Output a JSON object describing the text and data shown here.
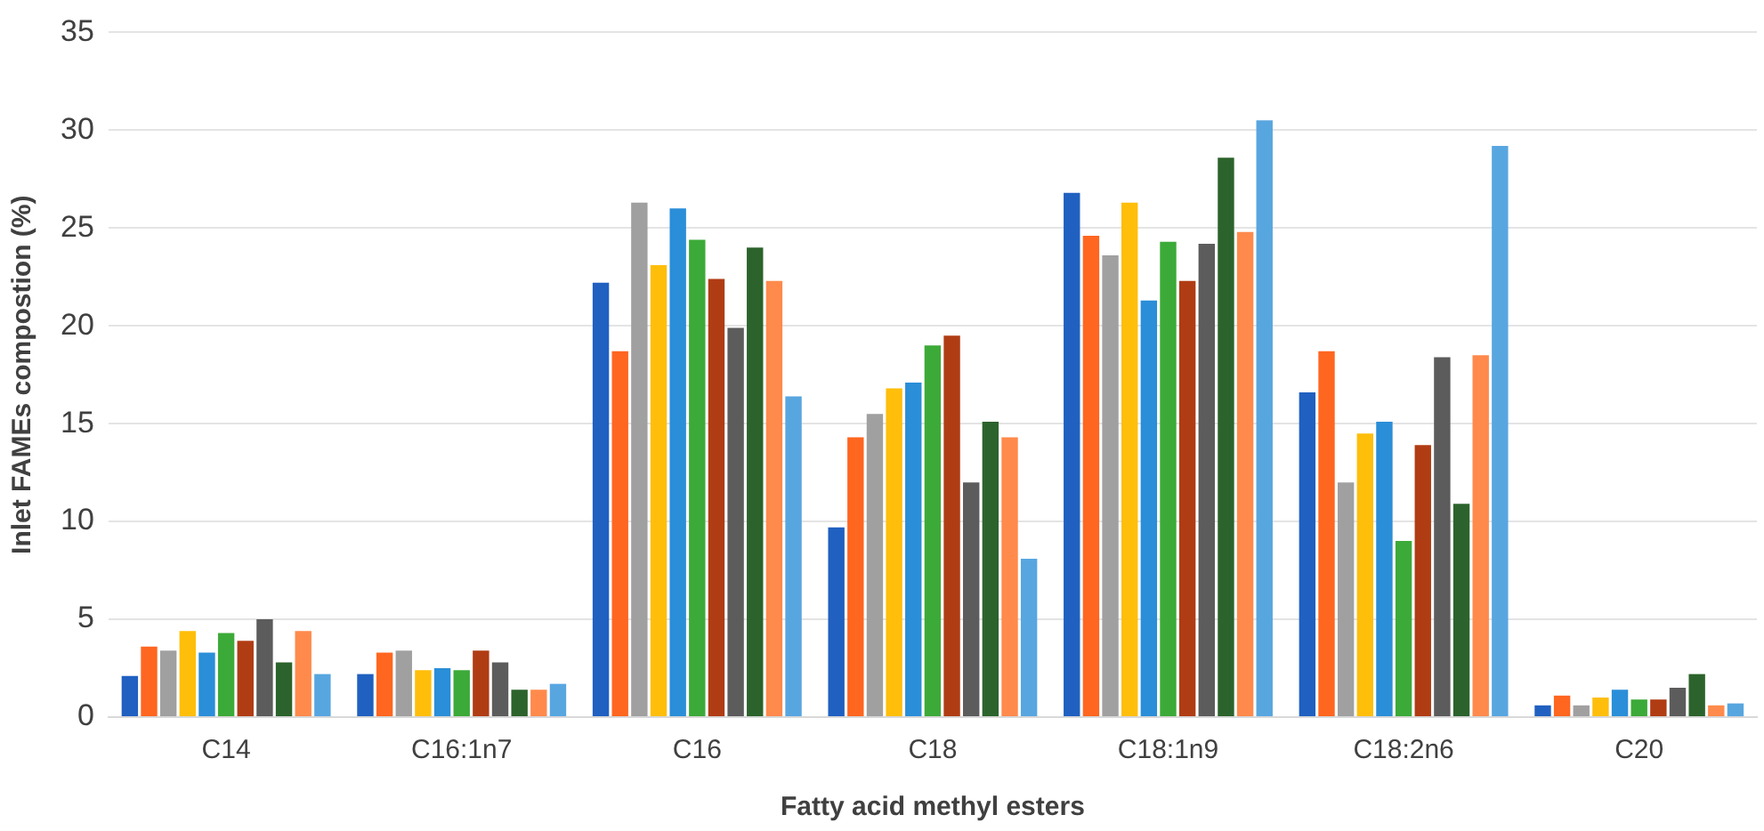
{
  "chart_data": {
    "type": "bar",
    "xlabel": "Fatty acid methyl esters",
    "ylabel": "Inlet FAMEs compostion (%)",
    "categories": [
      "C14",
      "C16:1n7",
      "C16",
      "C18",
      "C18:1n9",
      "C18:2n6",
      "C20"
    ],
    "series": [
      {
        "color": "#2060c0",
        "values": [
          2.1,
          2.2,
          22.2,
          9.7,
          26.8,
          16.6,
          0.6
        ]
      },
      {
        "color": "#ff6620",
        "values": [
          3.6,
          3.3,
          18.7,
          14.3,
          24.6,
          18.7,
          1.1
        ]
      },
      {
        "color": "#a0a0a0",
        "values": [
          3.4,
          3.4,
          26.3,
          15.5,
          23.6,
          12.0,
          0.6
        ]
      },
      {
        "color": "#ffbe0a",
        "values": [
          4.4,
          2.4,
          23.1,
          16.8,
          26.3,
          14.5,
          1.0
        ]
      },
      {
        "color": "#2a8ed8",
        "values": [
          3.3,
          2.5,
          26.0,
          17.1,
          21.3,
          15.1,
          1.4
        ]
      },
      {
        "color": "#3caa38",
        "values": [
          4.3,
          2.4,
          24.4,
          19.0,
          24.3,
          9.0,
          0.9
        ]
      },
      {
        "color": "#b03c14",
        "values": [
          3.9,
          3.4,
          22.4,
          19.5,
          22.3,
          13.9,
          0.9
        ]
      },
      {
        "color": "#5c5c5c",
        "values": [
          5.0,
          2.8,
          19.9,
          12.0,
          24.2,
          18.4,
          1.5
        ]
      },
      {
        "color": "#2c632c",
        "values": [
          2.8,
          1.4,
          24.0,
          15.1,
          28.6,
          10.9,
          2.2
        ]
      },
      {
        "color": "#ff8a4c",
        "values": [
          4.4,
          1.4,
          22.3,
          14.3,
          24.8,
          18.5,
          0.6
        ]
      },
      {
        "color": "#58a6e0",
        "values": [
          2.2,
          1.7,
          16.4,
          8.1,
          30.5,
          29.2,
          0.7
        ]
      }
    ],
    "ylim": [
      0,
      35
    ],
    "yticks": [
      0,
      5,
      10,
      15,
      20,
      25,
      30,
      35
    ],
    "grid": "y",
    "legend": false
  }
}
